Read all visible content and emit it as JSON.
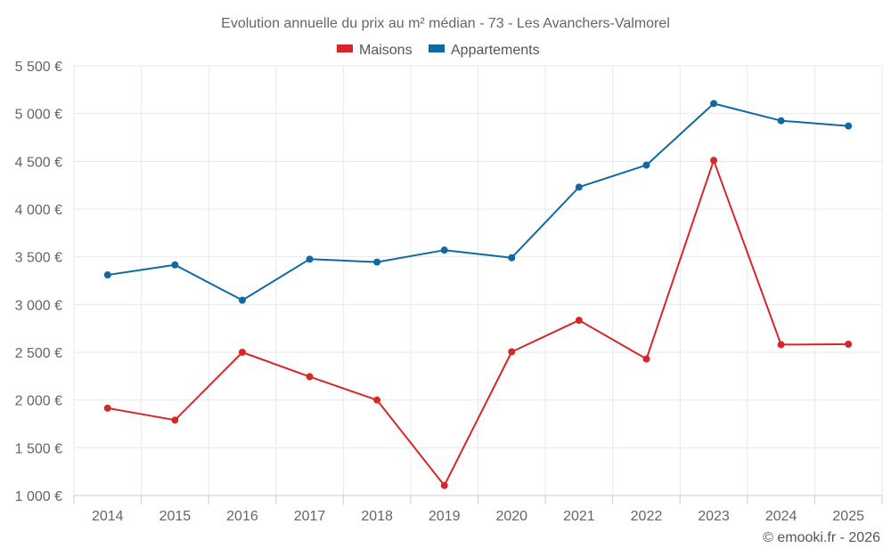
{
  "chart_data": {
    "type": "line",
    "title": "Evolution annuelle du prix au m² médian - 73 - Les Avanchers-Valmorel",
    "categories": [
      "2014",
      "2015",
      "2016",
      "2017",
      "2018",
      "2019",
      "2020",
      "2021",
      "2022",
      "2023",
      "2024",
      "2025"
    ],
    "series": [
      {
        "name": "Maisons",
        "color": "#d62728",
        "values": [
          1915,
          1790,
          2500,
          2245,
          2000,
          1105,
          2505,
          2835,
          2430,
          4510,
          2580,
          2585
        ]
      },
      {
        "name": "Appartements",
        "color": "#0e6aa0",
        "values": [
          3310,
          3415,
          3045,
          3475,
          3445,
          3570,
          3490,
          4230,
          4460,
          5105,
          4925,
          4870
        ]
      }
    ],
    "ylim": [
      1000,
      5500
    ],
    "yticks": [
      1000,
      1500,
      2000,
      2500,
      3000,
      3500,
      4000,
      4500,
      5000,
      5500
    ],
    "ytick_labels": [
      "1 000 €",
      "1 500 €",
      "2 000 €",
      "2 500 €",
      "3 000 €",
      "3 500 €",
      "4 000 €",
      "4 500 €",
      "5 000 €",
      "5 500 €"
    ],
    "xlabel": "",
    "ylabel": "",
    "grid": true,
    "legend": "top-center",
    "credit": "© emooki.fr - 2026"
  }
}
